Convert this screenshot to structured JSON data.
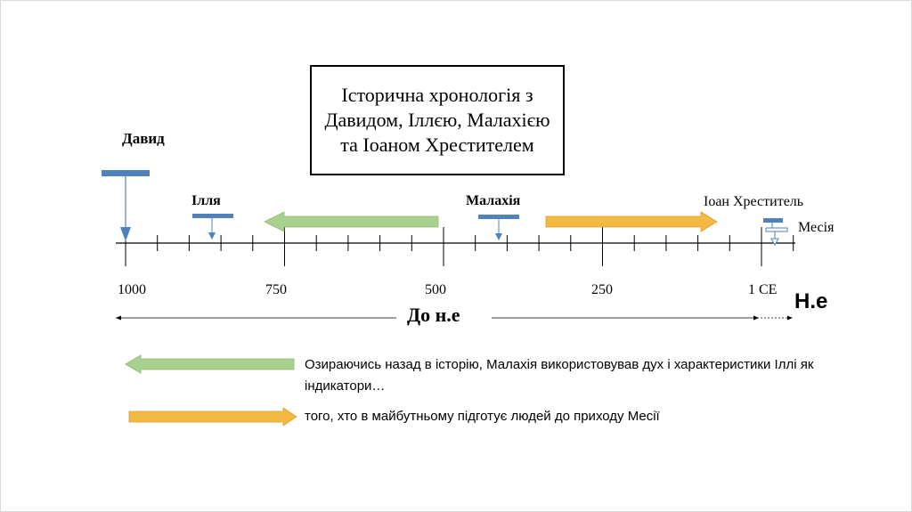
{
  "title": "Історична хронологія з Давидом, Іллєю, Малахією та Іоаном Хрестителем",
  "axis": {
    "labels": [
      "1000",
      "750",
      "500",
      "250",
      "1 CE"
    ],
    "era_bc": "До н.е",
    "era_ad": "Н.е"
  },
  "figures": {
    "david": "Давид",
    "elijah": "Ілля",
    "malachi": "Малахія",
    "john": "Іоан Хреститель",
    "messiah": "Месія"
  },
  "legend": {
    "green_text": "Озираючись назад в історію, Малахія використовував дух і характеристики Іллі як індикатори…",
    "orange_text": "того, хто в майбутньому підготує людей до приходу Месії"
  },
  "colors": {
    "green": "#a9d18e",
    "orange": "#f4b942",
    "marker_blue": "#4f81bd"
  }
}
